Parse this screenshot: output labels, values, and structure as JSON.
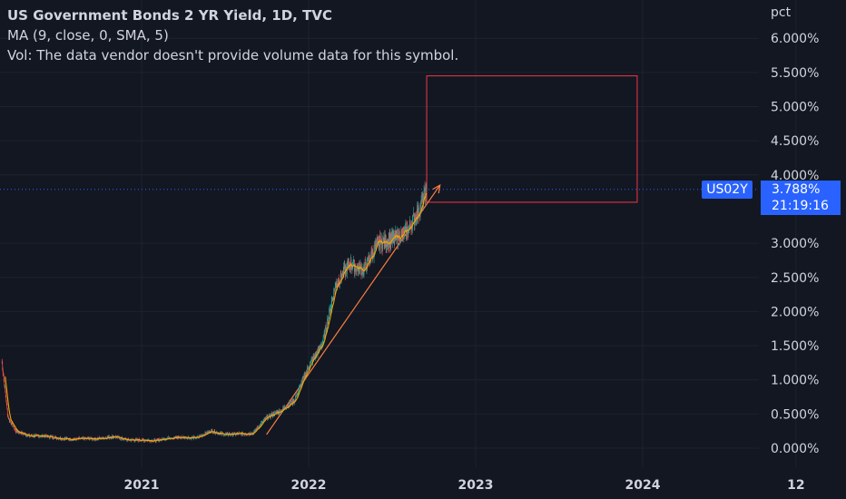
{
  "legend": {
    "title": "US Government Bonds 2 YR Yield, 1D, TVC",
    "ma": "MA (9, close, 0, SMA, 5)",
    "vol": "Vol: The data vendor doesn't provide volume data for this symbol."
  },
  "price_axis": {
    "unit": "pct",
    "ticks": [
      "0.000%",
      "0.500%",
      "1.000%",
      "1.500%",
      "2.000%",
      "2.500%",
      "3.000%",
      "4.000%",
      "4.500%",
      "5.000%",
      "5.500%",
      "6.000%"
    ]
  },
  "time_axis": {
    "ticks": [
      "2021",
      "2022",
      "2023",
      "2024",
      "12"
    ]
  },
  "badges": {
    "ticker": "US02Y",
    "last_price": "3.788%",
    "countdown": "21:19:16"
  },
  "colors": {
    "background": "#131722",
    "up": "#26a69a",
    "down": "#ef5350",
    "ma": "#f7a600",
    "trendline": "#ff7f3f",
    "box": "#f23645",
    "accent": "#2962ff"
  },
  "chart_data": {
    "type": "line",
    "ylim": [
      -0.2,
      6.35
    ],
    "x": [
      "2020-03-01",
      "2020-03-15",
      "2020-04-01",
      "2020-05-01",
      "2020-06-01",
      "2020-07-01",
      "2020-08-01",
      "2020-09-01",
      "2020-10-01",
      "2020-11-01",
      "2020-12-01",
      "2021-01-01",
      "2021-02-01",
      "2021-03-01",
      "2021-04-01",
      "2021-05-01",
      "2021-06-01",
      "2021-07-01",
      "2021-08-01",
      "2021-09-01",
      "2021-10-01",
      "2021-11-01",
      "2021-12-01",
      "2022-01-01",
      "2022-02-01",
      "2022-03-01",
      "2022-04-01",
      "2022-05-01",
      "2022-06-01",
      "2022-07-01",
      "2022-08-01",
      "2022-09-01",
      "2022-09-16"
    ],
    "series": [
      {
        "values": [
          1.3,
          0.45,
          0.25,
          0.18,
          0.18,
          0.15,
          0.13,
          0.14,
          0.14,
          0.17,
          0.12,
          0.12,
          0.11,
          0.15,
          0.16,
          0.15,
          0.25,
          0.2,
          0.21,
          0.22,
          0.45,
          0.55,
          0.7,
          1.2,
          1.55,
          2.4,
          2.7,
          2.6,
          3.0,
          3.05,
          3.15,
          3.5,
          3.788
        ]
      }
    ],
    "annotations": {
      "trendline": {
        "x": [
          "2021-10-01",
          "2022-10-15"
        ],
        "y": [
          0.2,
          3.85
        ]
      },
      "box": {
        "x": [
          "2022-09-16",
          "2023-12-20"
        ],
        "y": [
          3.6,
          5.45
        ]
      },
      "last_price_line": 3.788
    }
  }
}
